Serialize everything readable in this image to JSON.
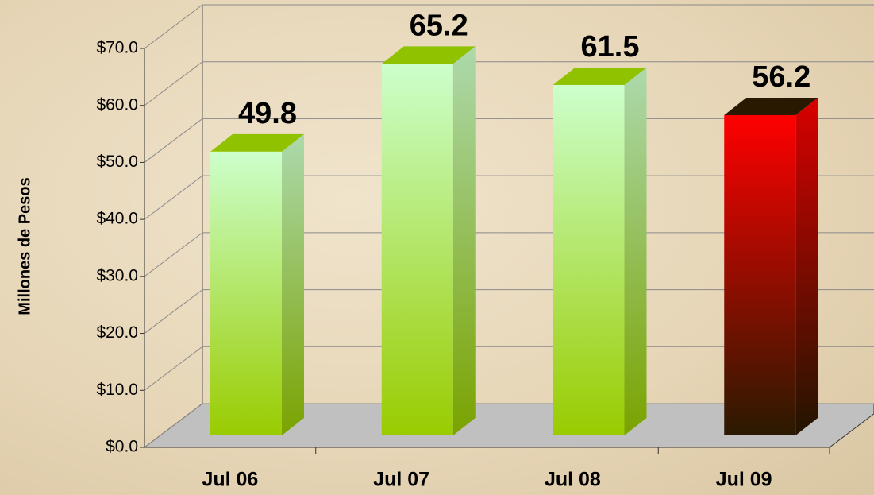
{
  "chart_data": {
    "type": "bar3d",
    "y_axis_label": "Millones de Pesos",
    "categories": [
      "Jul 06",
      "Jul 07",
      "Jul 08",
      "Jul 09"
    ],
    "values": [
      49.8,
      65.2,
      61.5,
      56.2
    ],
    "colors": [
      [
        "#ccffcc",
        "#99cc00"
      ],
      [
        "#ccffcc",
        "#99cc00"
      ],
      [
        "#ccffcc",
        "#99cc00"
      ],
      [
        "#ff0000",
        "#2a1a00"
      ]
    ],
    "ylim": [
      0,
      70
    ],
    "yticks": [
      {
        "value": 0,
        "label": "$0.0"
      },
      {
        "value": 10,
        "label": "$10.0"
      },
      {
        "value": 20,
        "label": "$20.0"
      },
      {
        "value": 30,
        "label": "$30.0"
      },
      {
        "value": 40,
        "label": "$40.0"
      },
      {
        "value": 50,
        "label": "$50.0"
      },
      {
        "value": 60,
        "label": "$60.0"
      },
      {
        "value": 70,
        "label": "$70.0"
      }
    ],
    "grid": true
  }
}
